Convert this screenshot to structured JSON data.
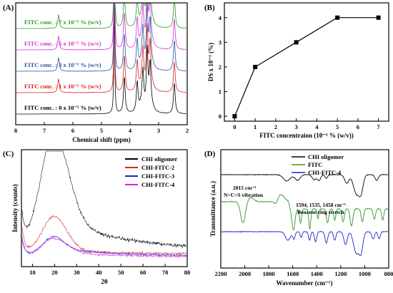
{
  "chart_data": [
    {
      "panel": "(A)",
      "type": "line",
      "xlabel": "Chemical shift (ppm)",
      "xticks": [
        "8",
        "7",
        "6",
        "5",
        "4",
        "3",
        "2"
      ],
      "xlim": [
        8,
        2
      ],
      "series": [
        {
          "name": "FITC conc. : 0 x 10⁻² % (w/v)",
          "color": "#000000"
        },
        {
          "name": "FITC conc. : 1 x 10⁻² % (w/v)",
          "color": "#e02020"
        },
        {
          "name": "FITC conc. : 3 x 10⁻² % (w/v)",
          "color": "#2855a8"
        },
        {
          "name": "FITC conc. : 5 x 10⁻² % (w/v)",
          "color": "#d030d0"
        },
        {
          "name": "FITC conc. : 7 x 10⁻² % (w/v)",
          "color": "#2a9a2a"
        }
      ],
      "peaks_ppm": [
        4.55,
        4.2,
        3.75,
        3.55,
        3.4,
        3.3,
        2.45,
        6.5
      ],
      "peak_heights": [
        10,
        3.2,
        2.6,
        3.2,
        5.2,
        3.8,
        2.7,
        1.2
      ]
    },
    {
      "panel": "(B)",
      "type": "line",
      "xlabel": "FITC concentraion  (10⁻² % (w/v))",
      "ylabel": "DS x 10⁻² (%)",
      "x": [
        0,
        1,
        3,
        5,
        7
      ],
      "y": [
        0,
        2,
        3,
        4,
        4
      ],
      "xlim": [
        -0.5,
        7.5
      ],
      "ylim": [
        -0.2,
        4.6
      ],
      "xticks": [
        "0",
        "1",
        "2",
        "3",
        "4",
        "5",
        "6",
        "7"
      ],
      "yticks": [
        "0",
        "1",
        "2",
        "3",
        "4"
      ],
      "marker": "square",
      "color": "#000000"
    },
    {
      "panel": "(C)",
      "type": "line",
      "xlabel": "2θ",
      "ylabel": "Intensity (counts)",
      "xlim": [
        5,
        80
      ],
      "xticks": [
        "10",
        "20",
        "30",
        "40",
        "50",
        "60",
        "70",
        "80"
      ],
      "series": [
        {
          "name": "CHI oligomer",
          "color": "#000000"
        },
        {
          "name": "CHI-FITC-2",
          "color": "#e02020"
        },
        {
          "name": "CHI-FITC-3",
          "color": "#2020e0"
        },
        {
          "name": "CHI-FITC-4",
          "color": "#e020e0"
        }
      ]
    },
    {
      "panel": "(D)",
      "type": "line",
      "xlabel": "Wavenumber (cm⁻¹)",
      "ylabel": "Transmittance (a.u.)",
      "xlim": [
        2200,
        800
      ],
      "xticks": [
        "2200",
        "2000",
        "1800",
        "1600",
        "1400",
        "1200",
        "1000",
        "800"
      ],
      "series": [
        {
          "name": "CHI oligomer",
          "color": "#000000"
        },
        {
          "name": "FITC",
          "color": "#2a9a2a"
        },
        {
          "name": "CHI-FITC-4",
          "color": "#2020d0"
        }
      ],
      "annotations": [
        "2015 cm⁻¹",
        "N=C=S vibration",
        "1594, 1535, 1458 cm⁻¹",
        "Benzene ring stretch"
      ]
    }
  ]
}
